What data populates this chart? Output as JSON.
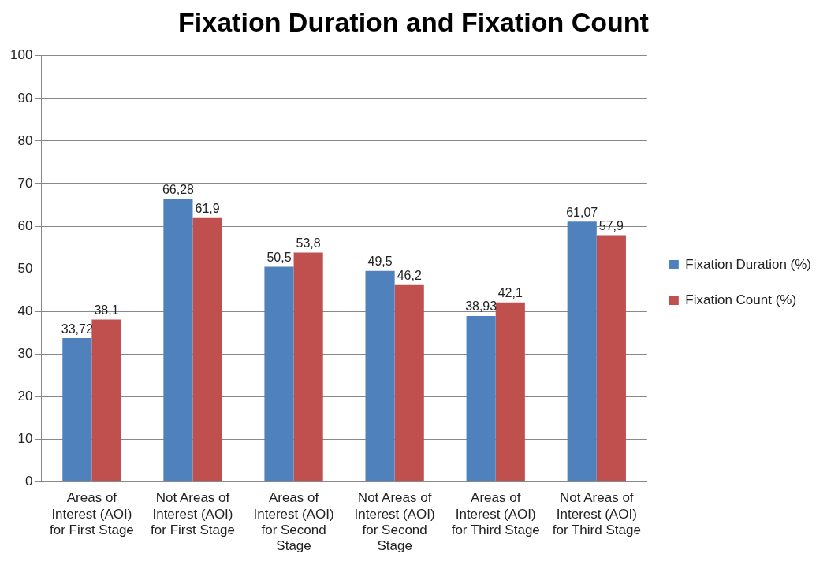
{
  "chart_data": {
    "type": "bar",
    "title": "Fixation Duration and Fixation Count",
    "categories": [
      "Areas of Interest (AOI) for First Stage",
      "Not Areas of Interest (AOI) for First Stage",
      "Areas of Interest (AOI) for Second Stage",
      "Not Areas of Interest (AOI) for Second Stage",
      "Areas of Interest (AOI) for Third Stage",
      "Not Areas of Interest (AOI) for Third Stage"
    ],
    "series": [
      {
        "name": "Fixation Duration (%)",
        "color": "#4f81bd",
        "values": [
          33.72,
          66.28,
          50.5,
          49.5,
          38.93,
          61.07
        ],
        "value_labels": [
          "33,72",
          "66,28",
          "50,5",
          "49,5",
          "38,93",
          "61,07"
        ]
      },
      {
        "name": "Fixation Count (%)",
        "color": "#c0504d",
        "values": [
          38.1,
          61.9,
          53.8,
          46.2,
          42.1,
          57.9
        ],
        "value_labels": [
          "38,1",
          "61,9",
          "53,8",
          "46,2",
          "42,1",
          "57,9"
        ]
      }
    ],
    "ylim": [
      0,
      100
    ],
    "yticks": [
      0,
      10,
      20,
      30,
      40,
      50,
      60,
      70,
      80,
      90,
      100
    ],
    "grid": "y",
    "legend": "right"
  }
}
